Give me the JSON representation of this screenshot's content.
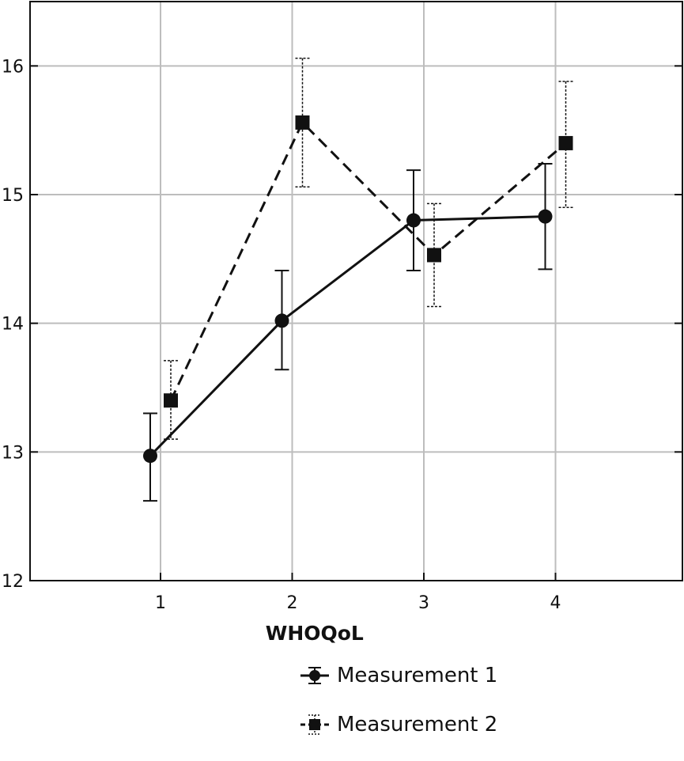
{
  "chart_data": {
    "type": "line",
    "xlabel": "WHOQoL",
    "categories": [
      "1",
      "2",
      "3",
      "4"
    ],
    "ylim": [
      12,
      16.5
    ],
    "yticks": [
      "12",
      "13",
      "14",
      "15",
      "16"
    ],
    "grid": true,
    "legend_position": "bottom",
    "series": [
      {
        "name": "Measurement 1",
        "line_style": "solid",
        "marker": "circle",
        "values": [
          12.97,
          14.02,
          14.8,
          14.83
        ],
        "error_low": [
          12.62,
          13.64,
          14.41,
          14.42
        ],
        "error_high": [
          13.3,
          14.41,
          15.19,
          15.24
        ]
      },
      {
        "name": "Measurement 2",
        "line_style": "dashed",
        "marker": "square",
        "values": [
          13.4,
          15.56,
          14.53,
          15.4
        ],
        "error_low": [
          13.1,
          15.06,
          14.13,
          14.9
        ],
        "error_high": [
          13.71,
          16.06,
          14.93,
          15.88
        ]
      }
    ]
  }
}
